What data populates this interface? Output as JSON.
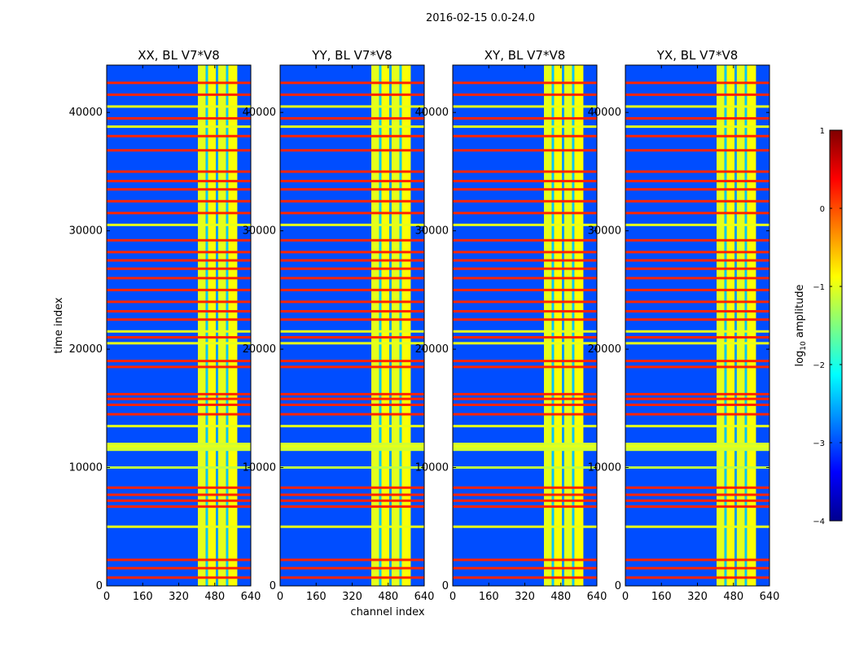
{
  "figure_title": "2016-02-15 0.0-24.0",
  "chart_data": {
    "type": "heatmap",
    "suptitle": "2016-02-15 0.0-24.0",
    "xlabel": "channel index",
    "ylabel": "time index",
    "xlim": [
      0,
      640
    ],
    "ylim": [
      0,
      44000
    ],
    "xticks": [
      0,
      160,
      320,
      480,
      640
    ],
    "yticks": [
      0,
      10000,
      20000,
      30000,
      40000
    ],
    "panels": [
      {
        "title": "XX, BL V7*V8",
        "polarization": "XX"
      },
      {
        "title": "YY, BL V7*V8",
        "polarization": "YY"
      },
      {
        "title": "XY, BL V7*V8",
        "polarization": "XY"
      },
      {
        "title": "YX, BL V7*V8",
        "polarization": "YX"
      }
    ],
    "colorbar": {
      "label": "log10 amplitude",
      "label_prefix": "log",
      "label_sub": "10",
      "label_suffix": " amplitude",
      "range": [
        -4,
        1
      ],
      "ticks": [
        -4,
        -3,
        -2,
        -1,
        0,
        1
      ],
      "tick_labels": [
        "−4",
        "−3",
        "−2",
        "−1",
        "0",
        "1"
      ],
      "colormap": "jet"
    },
    "background_level": -3.0,
    "bright_channel_bands": [
      {
        "x0": 405,
        "x1": 440,
        "level": -1.0
      },
      {
        "x0": 440,
        "x1": 450,
        "level": -2.4
      },
      {
        "x0": 450,
        "x1": 485,
        "level": -0.9
      },
      {
        "x0": 485,
        "x1": 495,
        "level": -2.6
      },
      {
        "x0": 495,
        "x1": 530,
        "level": -1.0
      },
      {
        "x0": 530,
        "x1": 540,
        "level": -2.4
      },
      {
        "x0": 540,
        "x1": 580,
        "level": -0.9
      }
    ],
    "time_flag_rows": [
      {
        "t": 700,
        "level": 0.2
      },
      {
        "t": 1500,
        "level": 0.2
      },
      {
        "t": 2200,
        "level": 0.2
      },
      {
        "t": 5000,
        "level": -1.0
      },
      {
        "t": 6700,
        "level": 0.2
      },
      {
        "t": 7200,
        "level": 0.2
      },
      {
        "t": 7700,
        "level": 0.2
      },
      {
        "t": 8300,
        "level": 0.2
      },
      {
        "t": 10000,
        "level": -1.2
      },
      {
        "t": 11800,
        "level": -1.0
      },
      {
        "t": 13500,
        "level": -1.0
      },
      {
        "t": 14500,
        "level": 0.2
      },
      {
        "t": 15300,
        "level": 0.2
      },
      {
        "t": 15800,
        "level": 0.2
      },
      {
        "t": 16200,
        "level": 0.2
      },
      {
        "t": 18500,
        "level": 0.2
      },
      {
        "t": 19000,
        "level": 0.2
      },
      {
        "t": 20500,
        "level": -1.0
      },
      {
        "t": 21000,
        "level": 0.2
      },
      {
        "t": 21500,
        "level": -1.0
      },
      {
        "t": 22500,
        "level": 0.2
      },
      {
        "t": 23200,
        "level": 0.2
      },
      {
        "t": 24000,
        "level": 0.2
      },
      {
        "t": 25000,
        "level": 0.2
      },
      {
        "t": 26000,
        "level": 0.2
      },
      {
        "t": 26800,
        "level": 0.2
      },
      {
        "t": 27500,
        "level": 0.2
      },
      {
        "t": 28200,
        "level": 0.2
      },
      {
        "t": 29200,
        "level": 0.2
      },
      {
        "t": 30500,
        "level": -1.0
      },
      {
        "t": 31500,
        "level": 0.2
      },
      {
        "t": 32500,
        "level": 0.2
      },
      {
        "t": 33500,
        "level": 0.2
      },
      {
        "t": 34200,
        "level": 0.2
      },
      {
        "t": 35000,
        "level": 0.2
      },
      {
        "t": 36800,
        "level": 0.2
      },
      {
        "t": 38000,
        "level": 0.2
      },
      {
        "t": 38800,
        "level": -1.0
      },
      {
        "t": 39500,
        "level": 0.2
      },
      {
        "t": 40500,
        "level": -1.0
      },
      {
        "t": 41500,
        "level": 0.2
      },
      {
        "t": 42500,
        "level": 0.2
      }
    ],
    "wide_flag_band": {
      "t0": 11400,
      "t1": 12100,
      "level": -1.1
    }
  }
}
